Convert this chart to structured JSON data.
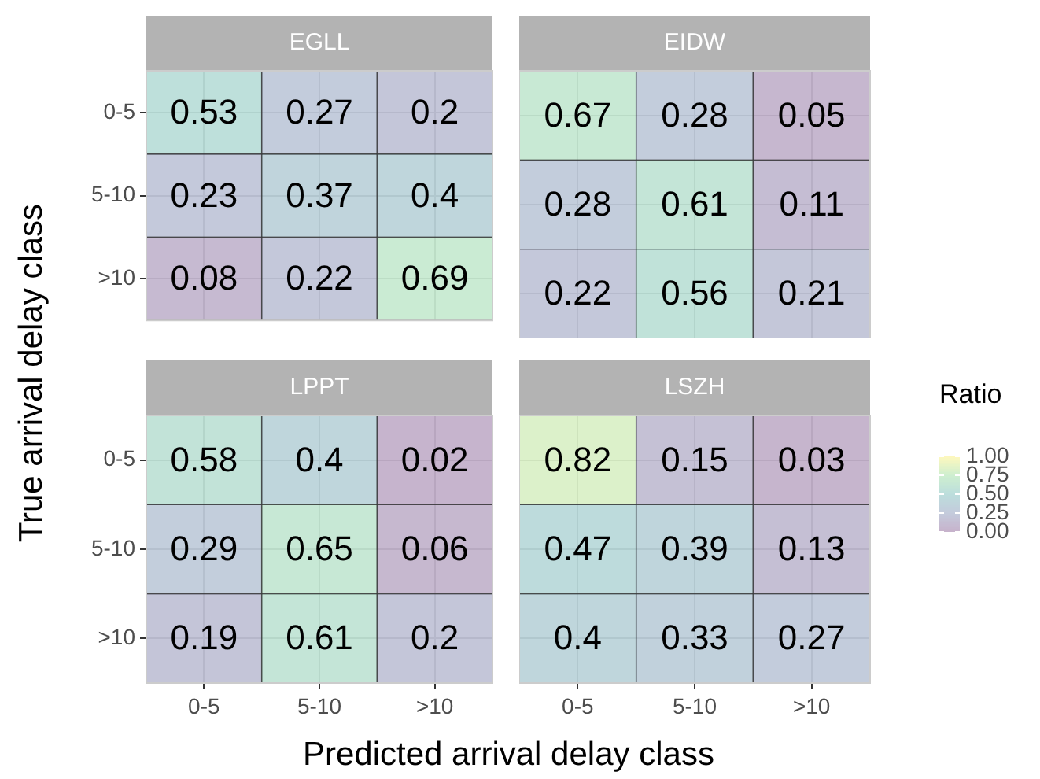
{
  "chart_data": [
    {
      "type": "heatmap",
      "title": "EGLL",
      "ylabel": "True arrival delay class",
      "categories": [
        null,
        null,
        null
      ],
      "y_categories": [
        "0-5",
        "5-10",
        ">10"
      ],
      "cells": [
        [
          0.53,
          0.27,
          0.2
        ],
        [
          0.23,
          0.37,
          0.4
        ],
        [
          0.08,
          0.22,
          0.69
        ]
      ],
      "data_labels": true,
      "grid": true,
      "tick_labels": "y"
    },
    {
      "type": "heatmap",
      "title": "EIDW",
      "categories": [
        null,
        null,
        null
      ],
      "y_categories": [
        null,
        null,
        null
      ],
      "cells": [
        [
          0.67,
          0.28,
          0.05
        ],
        [
          0.28,
          0.61,
          0.11
        ],
        [
          0.22,
          0.56,
          0.21
        ]
      ],
      "data_labels": true,
      "grid": true,
      "tick_labels": false
    },
    {
      "type": "heatmap",
      "title": "LPPT",
      "xlabel": "Predicted arrival delay class",
      "categories": [
        "0-5",
        "5-10",
        ">10"
      ],
      "y_categories": [
        "0-5",
        "5-10",
        ">10"
      ],
      "cells": [
        [
          0.58,
          0.4,
          0.02
        ],
        [
          0.29,
          0.65,
          0.06
        ],
        [
          0.19,
          0.61,
          0.2
        ]
      ],
      "data_labels": true,
      "grid": true
    },
    {
      "type": "heatmap",
      "title": "LSZH",
      "clabel": "Ratio",
      "clim": [
        0,
        1
      ],
      "cticks": [
        {
          "value": 0,
          "label": "0.00"
        },
        {
          "value": 0.25,
          "label": "0.25"
        },
        {
          "value": 0.5,
          "label": "0.50"
        },
        {
          "value": 0.75,
          "label": "0.75"
        },
        {
          "value": 1,
          "label": "1.00"
        }
      ],
      "categories": [
        "0-5",
        "5-10",
        ">10"
      ],
      "y_categories": [
        null,
        null,
        null
      ],
      "cells": [
        [
          0.82,
          0.15,
          0.03
        ],
        [
          0.47,
          0.39,
          0.13
        ],
        [
          0.4,
          0.33,
          0.27
        ]
      ],
      "data_labels": true,
      "grid": true,
      "tick_labels": "x"
    }
  ]
}
